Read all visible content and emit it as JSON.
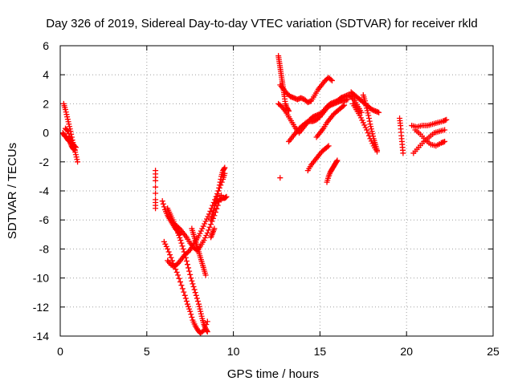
{
  "chart_data": {
    "type": "scatter",
    "title": "Day 326 of 2019, Sidereal Day-to-day VTEC variation (SDTVAR) for receiver rkld",
    "xlabel": "GPS time / hours",
    "ylabel": "SDTVAR / TECUs",
    "xlim": [
      0,
      25
    ],
    "ylim": [
      -14,
      6
    ],
    "xticks": [
      0,
      5,
      10,
      15,
      20,
      25
    ],
    "yticks": [
      -14,
      -12,
      -10,
      -8,
      -6,
      -4,
      -2,
      0,
      2,
      4,
      6
    ],
    "xtick_labels": [
      "0",
      "5",
      "10",
      "15",
      "20",
      "25"
    ],
    "ytick_labels": [
      "-14",
      "-12",
      "-10",
      "-8",
      "-6",
      "-4",
      "-2",
      "0",
      "2",
      "4",
      "6"
    ],
    "grid": true,
    "marker": "+",
    "color": "#ff0000",
    "series": [
      {
        "name": "seg-a1",
        "x": [
          0.2,
          0.3,
          0.4,
          0.5,
          0.6,
          0.7,
          0.8,
          0.9,
          1.0
        ],
        "y": [
          2.0,
          1.6,
          1.1,
          0.6,
          0.1,
          -0.5,
          -1.0,
          -1.5,
          -2.0
        ]
      },
      {
        "name": "seg-a2",
        "x": [
          0.15,
          0.25,
          0.35,
          0.45,
          0.55,
          0.65,
          0.75,
          0.85
        ],
        "y": [
          0.0,
          -0.2,
          -0.3,
          -0.5,
          -0.6,
          -0.9,
          -1.1,
          -1.2
        ]
      },
      {
        "name": "seg-a3",
        "x": [
          0.3,
          0.45,
          0.6,
          0.75,
          0.9
        ],
        "y": [
          0.3,
          0.1,
          -0.4,
          -0.8,
          -1.0
        ]
      },
      {
        "name": "seg-b1",
        "x": [
          5.5,
          5.5,
          5.5,
          5.5
        ],
        "y": [
          -2.6,
          -3.3,
          -4.6,
          -5.2
        ]
      },
      {
        "name": "seg-c1",
        "x": [
          5.9,
          6.05,
          6.2,
          6.35,
          6.5,
          6.65,
          6.8,
          6.9
        ],
        "y": [
          -4.7,
          -5.3,
          -5.7,
          -6.0,
          -6.3,
          -6.6,
          -6.8,
          -7.0
        ]
      },
      {
        "name": "seg-c2",
        "x": [
          6.0,
          6.2,
          6.4,
          6.6,
          6.8,
          7.0,
          7.2,
          7.35,
          7.5,
          7.65,
          7.8,
          7.95,
          8.1,
          8.3,
          8.5
        ],
        "y": [
          -7.5,
          -8.0,
          -8.6,
          -9.2,
          -9.8,
          -10.5,
          -11.2,
          -11.8,
          -12.3,
          -12.9,
          -13.3,
          -13.6,
          -13.8,
          -13.6,
          -13.0
        ]
      },
      {
        "name": "seg-c3",
        "x": [
          6.2,
          6.35,
          6.5,
          6.65,
          6.8,
          6.95,
          7.1,
          7.25,
          7.4,
          7.55,
          7.7,
          7.85,
          8.0,
          8.1,
          8.2,
          8.3,
          8.4,
          8.5
        ],
        "y": [
          -5.2,
          -5.6,
          -6.0,
          -6.4,
          -6.9,
          -7.4,
          -8.0,
          -8.6,
          -9.3,
          -10.0,
          -10.6,
          -11.2,
          -11.8,
          -12.3,
          -12.8,
          -13.2,
          -13.5,
          -13.7
        ]
      },
      {
        "name": "seg-c4",
        "x": [
          6.2,
          6.4,
          6.6,
          6.8,
          7.0,
          7.2,
          7.4,
          7.6,
          7.8,
          8.0,
          8.2,
          8.4,
          8.6,
          8.8,
          9.0,
          9.2,
          9.4,
          9.5
        ],
        "y": [
          -8.8,
          -9.1,
          -9.2,
          -9.0,
          -8.7,
          -8.4,
          -8.2,
          -7.9,
          -7.5,
          -7.1,
          -6.6,
          -6.1,
          -5.6,
          -5.0,
          -4.4,
          -3.8,
          -3.2,
          -2.8
        ]
      },
      {
        "name": "seg-c5",
        "x": [
          6.5,
          6.7,
          6.9,
          7.1,
          7.3,
          7.5,
          7.7,
          7.9,
          8.1,
          8.3,
          8.5,
          8.7,
          8.9,
          9.1,
          9.3
        ],
        "y": [
          -6.2,
          -6.4,
          -6.6,
          -6.9,
          -7.2,
          -7.6,
          -7.9,
          -8.1,
          -7.8,
          -7.4,
          -6.9,
          -6.3,
          -5.7,
          -5.0,
          -4.3
        ]
      },
      {
        "name": "seg-c6",
        "x": [
          7.6,
          7.7,
          7.8,
          7.9,
          8.0,
          8.1,
          8.2,
          8.3,
          8.4
        ],
        "y": [
          -6.6,
          -7.0,
          -7.4,
          -7.8,
          -8.2,
          -8.6,
          -9.0,
          -9.4,
          -9.8
        ]
      },
      {
        "name": "seg-c7",
        "x": [
          8.7,
          8.8,
          8.9,
          9.0,
          9.1,
          9.2,
          9.3,
          9.4,
          9.5
        ],
        "y": [
          -6.0,
          -5.6,
          -5.2,
          -4.7,
          -4.2,
          -3.6,
          -3.0,
          -2.6,
          -2.4
        ]
      },
      {
        "name": "seg-c8",
        "x": [
          9.0,
          9.2,
          9.4,
          9.5,
          9.6
        ],
        "y": [
          -4.8,
          -4.6,
          -4.5,
          -4.5,
          -4.4
        ]
      },
      {
        "name": "seg-c9",
        "x": [
          8.7,
          8.8,
          8.9
        ],
        "y": [
          -7.2,
          -6.9,
          -6.6
        ]
      },
      {
        "name": "seg-d1",
        "x": [
          12.6,
          12.65,
          12.7,
          12.75,
          12.8,
          12.85,
          12.9,
          12.95,
          13.0,
          13.1,
          13.2
        ],
        "y": [
          5.3,
          4.9,
          4.5,
          4.1,
          3.7,
          3.3,
          2.9,
          2.5,
          2.0,
          1.7,
          1.5
        ]
      },
      {
        "name": "seg-d2",
        "x": [
          12.7,
          12.9,
          13.1,
          13.3,
          13.5,
          13.7,
          13.9,
          14.1,
          14.3,
          14.5,
          14.7,
          14.9,
          15.1,
          15.3,
          15.5,
          15.7
        ],
        "y": [
          3.3,
          3.0,
          2.7,
          2.5,
          2.4,
          2.3,
          2.4,
          2.3,
          2.1,
          2.2,
          2.6,
          3.0,
          3.3,
          3.6,
          3.8,
          3.6
        ]
      },
      {
        "name": "seg-d3",
        "x": [
          12.6,
          12.8,
          13.0,
          13.2,
          13.4,
          13.6,
          13.8,
          14.0,
          14.2,
          14.4,
          14.6,
          14.8,
          15.0,
          15.2,
          15.4,
          15.6,
          15.8,
          16.0,
          16.2,
          16.4,
          16.6,
          16.8,
          17.0,
          17.2,
          17.4
        ],
        "y": [
          2.0,
          1.8,
          1.5,
          1.1,
          0.7,
          0.3,
          0.0,
          0.3,
          0.6,
          0.9,
          1.1,
          1.2,
          1.3,
          1.5,
          1.8,
          2.0,
          2.1,
          2.2,
          2.4,
          2.5,
          2.6,
          2.5,
          2.2,
          1.8,
          1.4
        ]
      },
      {
        "name": "seg-d4",
        "x": [
          13.2,
          13.4,
          13.6,
          13.8,
          14.0,
          14.2,
          14.4,
          14.6,
          14.8,
          15.0,
          15.2,
          15.4,
          15.6,
          15.8,
          16.0,
          16.2,
          16.4,
          16.6
        ],
        "y": [
          -0.6,
          -0.3,
          0.0,
          0.3,
          0.5,
          0.7,
          0.8,
          0.8,
          0.9,
          1.1,
          1.4,
          1.7,
          1.9,
          2.0,
          2.1,
          2.2,
          2.2,
          2.3
        ]
      },
      {
        "name": "seg-d5",
        "x": [
          14.3,
          14.5,
          14.7,
          14.9,
          15.1,
          15.3,
          15.5
        ],
        "y": [
          -2.6,
          -2.2,
          -1.9,
          -1.6,
          -1.3,
          -1.1,
          -0.9
        ]
      },
      {
        "name": "seg-d6",
        "x": [
          15.4,
          15.5,
          15.6,
          15.7,
          15.8,
          15.9,
          16.0
        ],
        "y": [
          -3.4,
          -3.0,
          -2.7,
          -2.5,
          -2.3,
          -2.1,
          -1.9
        ]
      },
      {
        "name": "seg-d7",
        "x": [
          14.8,
          15.0,
          15.2,
          15.4,
          15.6,
          15.8,
          16.0,
          16.2,
          16.4
        ],
        "y": [
          -0.3,
          0.0,
          0.3,
          0.7,
          1.0,
          1.3,
          1.5,
          1.7,
          1.9
        ]
      },
      {
        "name": "seg-d8",
        "x": [
          12.7
        ],
        "y": [
          -3.1
        ]
      },
      {
        "name": "seg-e1",
        "x": [
          16.8,
          17.0,
          17.2,
          17.4,
          17.6,
          17.8,
          18.0,
          18.2,
          18.4
        ],
        "y": [
          2.8,
          2.6,
          2.4,
          2.2,
          2.0,
          1.8,
          1.6,
          1.5,
          1.4
        ]
      },
      {
        "name": "seg-e2",
        "x": [
          16.9,
          17.1,
          17.3,
          17.5,
          17.7,
          17.9,
          18.1,
          18.3
        ],
        "y": [
          2.0,
          1.6,
          1.2,
          0.7,
          0.2,
          -0.4,
          -0.9,
          -1.3
        ]
      },
      {
        "name": "seg-e3",
        "x": [
          17.5,
          17.6,
          17.7,
          17.8,
          17.9,
          18.0,
          18.1,
          18.2,
          18.3
        ],
        "y": [
          2.6,
          2.2,
          1.7,
          1.2,
          0.6,
          0.1,
          -0.4,
          -0.8,
          -1.2
        ]
      },
      {
        "name": "seg-f1",
        "x": [
          19.6,
          19.65,
          19.7,
          19.75,
          19.8
        ],
        "y": [
          1.0,
          0.5,
          -0.2,
          -0.8,
          -1.4
        ]
      },
      {
        "name": "seg-g1",
        "x": [
          20.3,
          20.6,
          20.9,
          21.2,
          21.5,
          21.8,
          22.1,
          22.3
        ],
        "y": [
          0.5,
          0.4,
          0.5,
          0.5,
          0.6,
          0.7,
          0.8,
          0.9
        ]
      },
      {
        "name": "seg-g2",
        "x": [
          20.4,
          20.7,
          21.0,
          21.3,
          21.6,
          21.9,
          22.2
        ],
        "y": [
          -1.4,
          -1.0,
          -0.6,
          -0.3,
          0.0,
          0.1,
          0.2
        ]
      },
      {
        "name": "seg-g3",
        "x": [
          20.5,
          20.8,
          21.1,
          21.4,
          21.7,
          22.0,
          22.2
        ],
        "y": [
          0.2,
          -0.1,
          -0.5,
          -0.8,
          -0.9,
          -0.7,
          -0.6
        ]
      }
    ]
  }
}
